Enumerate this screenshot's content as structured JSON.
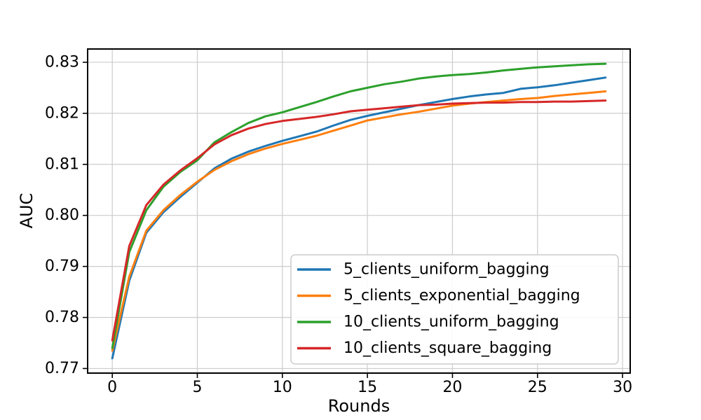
{
  "figure": {
    "background": "#ffffff",
    "title": ""
  },
  "chart_data": {
    "type": "line",
    "title": "",
    "xlabel": "Rounds",
    "ylabel": "AUC",
    "xlim": [
      -1.45,
      30.45
    ],
    "ylim": [
      0.7691,
      0.8326
    ],
    "xticks": [
      0,
      5,
      10,
      15,
      20,
      25,
      30
    ],
    "yticks": [
      0.77,
      0.78,
      0.79,
      0.8,
      0.81,
      0.82,
      0.83
    ],
    "grid": true,
    "legend_position": "lower-right-inside",
    "x": [
      0,
      1,
      2,
      3,
      4,
      5,
      6,
      7,
      8,
      9,
      10,
      11,
      12,
      13,
      14,
      15,
      16,
      17,
      18,
      19,
      20,
      21,
      22,
      23,
      24,
      25,
      26,
      27,
      28,
      29
    ],
    "series": [
      {
        "name": "5_clients_uniform_bagging",
        "color": "#1f77b4",
        "values": [
          0.772,
          0.7872,
          0.7966,
          0.8006,
          0.8036,
          0.8064,
          0.8092,
          0.8111,
          0.8125,
          0.8136,
          0.8146,
          0.8155,
          0.8164,
          0.8176,
          0.8187,
          0.8195,
          0.8202,
          0.8209,
          0.8216,
          0.8222,
          0.8228,
          0.8233,
          0.8237,
          0.824,
          0.8248,
          0.8251,
          0.8255,
          0.826,
          0.8265,
          0.827
        ]
      },
      {
        "name": "5_clients_exponential_bagging",
        "color": "#ff7f0e",
        "values": [
          0.7735,
          0.788,
          0.797,
          0.801,
          0.804,
          0.8066,
          0.8089,
          0.8106,
          0.812,
          0.8131,
          0.814,
          0.8148,
          0.8156,
          0.8166,
          0.8176,
          0.8186,
          0.8192,
          0.8198,
          0.8203,
          0.8209,
          0.8215,
          0.8219,
          0.8222,
          0.8225,
          0.8228,
          0.823,
          0.8234,
          0.8237,
          0.824,
          0.8243
        ]
      },
      {
        "name": "10_clients_uniform_bagging",
        "color": "#2ca02c",
        "values": [
          0.774,
          0.7928,
          0.801,
          0.8056,
          0.8085,
          0.8108,
          0.8143,
          0.8163,
          0.8181,
          0.8194,
          0.8202,
          0.8212,
          0.8222,
          0.8233,
          0.8243,
          0.825,
          0.8257,
          0.8262,
          0.8268,
          0.8272,
          0.8275,
          0.8277,
          0.828,
          0.8284,
          0.8287,
          0.829,
          0.8292,
          0.8294,
          0.8296,
          0.8297
        ]
      },
      {
        "name": "10_clients_square_bagging",
        "color": "#d62728",
        "values": [
          0.7755,
          0.794,
          0.802,
          0.806,
          0.8088,
          0.8112,
          0.8139,
          0.8157,
          0.817,
          0.8179,
          0.8185,
          0.8189,
          0.8193,
          0.8198,
          0.8204,
          0.8207,
          0.821,
          0.8213,
          0.8216,
          0.8217,
          0.8219,
          0.822,
          0.8221,
          0.8221,
          0.8222,
          0.8222,
          0.8223,
          0.8223,
          0.8224,
          0.8225
        ]
      }
    ]
  },
  "style": {
    "grid_color": "#cccccc",
    "spine_color": "#000000",
    "tick_color": "#000000",
    "legend_border_color": "#cccccc",
    "legend_background": "#ffffff"
  }
}
